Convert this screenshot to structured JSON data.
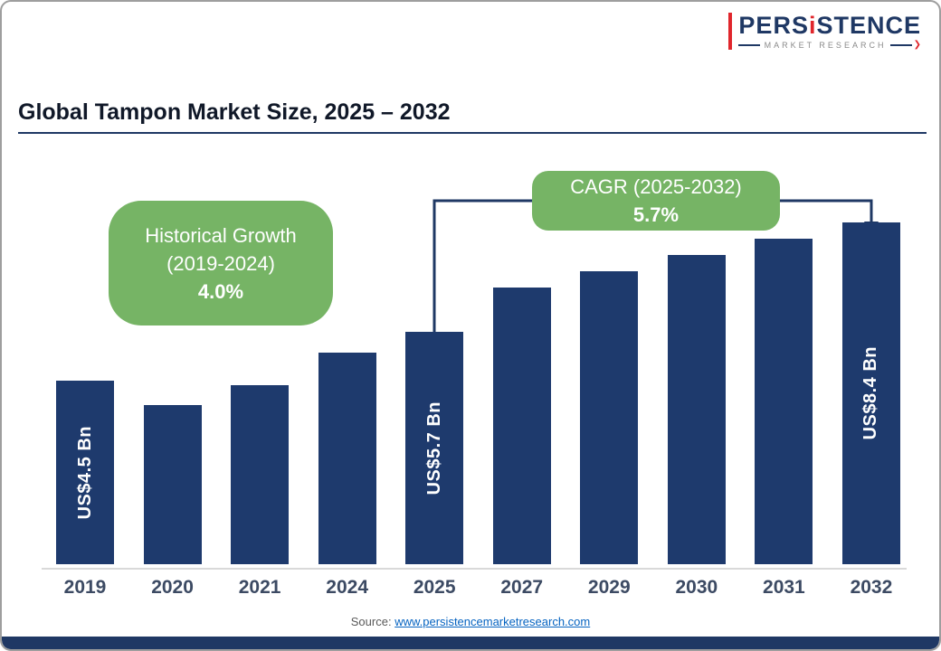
{
  "page": {
    "title": "Global Tampon Market Size, 2025 – 2032",
    "source_prefix": "Source:",
    "source_link": "www.persistencemarketresearch.com"
  },
  "logo": {
    "brand_pre": "PERS",
    "brand_i": "i",
    "brand_post": "STENCE",
    "brand_sub": "MARKET RESEARCH"
  },
  "callouts": {
    "historical": {
      "line1": "Historical Growth",
      "line2": "(2019-2024)",
      "value": "4.0%"
    },
    "cagr": {
      "line1": "CAGR (2025-2032)",
      "value": "5.7%"
    }
  },
  "colors": {
    "bar": "#1e3a6d",
    "green": "#76b465",
    "navy": "#1f3864",
    "red": "#e0262c",
    "link": "#0563c1"
  },
  "chart_data": {
    "type": "bar",
    "title": "Global Tampon Market Size, 2025 – 2032",
    "unit": "US$ Bn",
    "categories": [
      "2019",
      "2020",
      "2021",
      "2024",
      "2025",
      "2027",
      "2029",
      "2030",
      "2031",
      "2032"
    ],
    "values": [
      4.5,
      3.9,
      4.4,
      5.2,
      5.7,
      6.8,
      7.2,
      7.6,
      8.0,
      8.4
    ],
    "bar_labels": {
      "2019": "US$4.5 Bn",
      "2025": "US$5.7 Bn",
      "2032": "US$8.4 Bn"
    },
    "annotations": [
      "Historical Growth (2019-2024) 4.0%",
      "CAGR (2025-2032) 5.7%"
    ],
    "ylim": [
      0,
      9
    ],
    "grid": false,
    "legend": false
  }
}
